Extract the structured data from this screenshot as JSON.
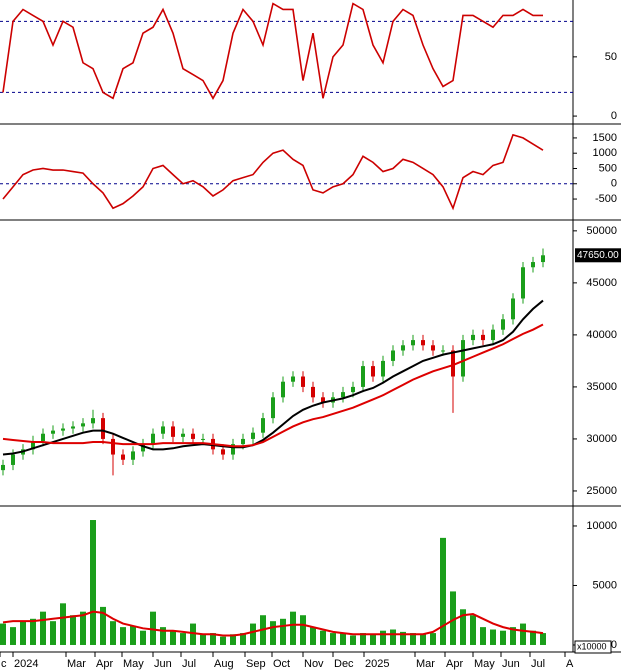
{
  "chart_data": [
    {
      "type": "line",
      "xlim": [
        -0.3,
        57
      ],
      "ylim": [
        -5,
        98
      ],
      "yticks": [
        0,
        50
      ],
      "levels": [
        20,
        80
      ],
      "series": [
        {
          "color": "#cc0000",
          "values": [
            20,
            80,
            90,
            85,
            80,
            60,
            80,
            75,
            45,
            40,
            20,
            15,
            40,
            45,
            70,
            75,
            90,
            70,
            40,
            35,
            30,
            15,
            30,
            70,
            90,
            80,
            60,
            95,
            90,
            90,
            30,
            70,
            15,
            50,
            60,
            95,
            90,
            60,
            45,
            80,
            90,
            85,
            60,
            40,
            25,
            30,
            85,
            85,
            80,
            75,
            85,
            85,
            90,
            85,
            85
          ]
        }
      ]
    },
    {
      "type": "line",
      "xlim": [
        -0.3,
        57
      ],
      "ylim": [
        -1120,
        1890
      ],
      "yticks": [
        -500,
        0,
        500,
        1000,
        1500
      ],
      "levels": [
        0
      ],
      "series": [
        {
          "color": "#cc0000",
          "values": [
            -500,
            -100,
            300,
            450,
            500,
            450,
            450,
            400,
            350,
            0,
            -300,
            -800,
            -650,
            -400,
            -100,
            500,
            600,
            300,
            0,
            100,
            -100,
            -400,
            -200,
            100,
            200,
            300,
            700,
            1000,
            1100,
            800,
            600,
            -200,
            -300,
            -100,
            0,
            300,
            900,
            700,
            400,
            500,
            800,
            700,
            500,
            300,
            -100,
            -800,
            200,
            400,
            300,
            600,
            700,
            1600,
            1500,
            1300,
            1100
          ]
        }
      ]
    },
    {
      "type": "candlestick",
      "xlim": [
        -0.3,
        57
      ],
      "ylim": [
        23650,
        50850
      ],
      "yticks": [
        25000,
        30000,
        35000,
        40000,
        45000,
        50000
      ],
      "last": {
        "value": 47650,
        "label": "47650.00"
      },
      "up_color": "#1a9e1a",
      "down_color": "#d40000",
      "open": [
        27000,
        27500,
        28500,
        29000,
        29800,
        30500,
        30800,
        31000,
        31200,
        31500,
        32000,
        30000,
        28500,
        28000,
        28800,
        29500,
        30500,
        31200,
        30200,
        30500,
        30000,
        30000,
        29000,
        28500,
        29500,
        30000,
        30600,
        32000,
        34000,
        35500,
        36000,
        35000,
        34000,
        33500,
        34000,
        34500,
        35000,
        37000,
        36000,
        37500,
        38500,
        39000,
        39500,
        39000,
        38500,
        38500,
        36000,
        39500,
        40000,
        39500,
        40500,
        41500,
        43500,
        46500,
        47000
      ],
      "high": [
        28000,
        29000,
        29500,
        30300,
        31000,
        31300,
        31500,
        31700,
        32000,
        32800,
        32500,
        30500,
        29000,
        29300,
        30000,
        31000,
        31700,
        31700,
        31000,
        31000,
        30500,
        30500,
        29500,
        30000,
        30500,
        31100,
        32500,
        34500,
        36000,
        36500,
        36500,
        35500,
        34500,
        34500,
        35000,
        35500,
        37500,
        37500,
        38000,
        39000,
        39500,
        40000,
        40000,
        39500,
        39000,
        39000,
        40000,
        40500,
        40500,
        41000,
        42000,
        44000,
        47000,
        47500,
        48300
      ],
      "low": [
        26500,
        27000,
        28000,
        28500,
        29300,
        30000,
        30300,
        30500,
        30700,
        31000,
        29500,
        26500,
        27500,
        27500,
        28300,
        29000,
        30000,
        29700,
        29700,
        29500,
        29500,
        28500,
        28000,
        28000,
        29000,
        29500,
        30100,
        31500,
        33500,
        35000,
        34500,
        33500,
        33000,
        33000,
        33500,
        34000,
        34500,
        35500,
        35500,
        37000,
        38000,
        38500,
        38500,
        38000,
        38000,
        32500,
        35500,
        39000,
        39000,
        39000,
        40000,
        41000,
        43000,
        46000,
        46500
      ],
      "close": [
        27500,
        28500,
        29000,
        29800,
        30500,
        30800,
        31000,
        31200,
        31500,
        32000,
        30000,
        28500,
        28000,
        28800,
        29500,
        30500,
        31200,
        30200,
        30500,
        30000,
        30000,
        29000,
        28500,
        29500,
        30000,
        30600,
        32000,
        34000,
        35500,
        36000,
        35000,
        34000,
        33500,
        34000,
        34500,
        35000,
        37000,
        36000,
        37500,
        38500,
        39000,
        39500,
        39000,
        38500,
        38500,
        36000,
        39500,
        40000,
        39500,
        40500,
        41500,
        43500,
        46500,
        47000,
        47650
      ],
      "series": [
        {
          "color": "#000000",
          "values": [
            28500,
            28600,
            28800,
            29100,
            29400,
            29700,
            30000,
            30300,
            30600,
            30800,
            30800,
            30500,
            30100,
            29700,
            29300,
            29000,
            29000,
            29100,
            29300,
            29400,
            29500,
            29400,
            29300,
            29200,
            29200,
            29400,
            29900,
            30600,
            31400,
            32200,
            32800,
            33200,
            33500,
            33700,
            33900,
            34200,
            34600,
            34900,
            35400,
            36000,
            36500,
            37000,
            37500,
            37800,
            38100,
            38300,
            38500,
            38700,
            38900,
            39100,
            39500,
            40300,
            41500,
            42500,
            43300
          ]
        },
        {
          "color": "#dd0000",
          "values": [
            30000,
            29900,
            29800,
            29700,
            29700,
            29600,
            29600,
            29600,
            29600,
            29700,
            29700,
            29600,
            29500,
            29500,
            29500,
            29500,
            29600,
            29600,
            29600,
            29600,
            29600,
            29500,
            29400,
            29300,
            29300,
            29400,
            29700,
            30200,
            30700,
            31200,
            31600,
            31900,
            32100,
            32400,
            32700,
            33000,
            33400,
            33800,
            34200,
            34700,
            35200,
            35700,
            36100,
            36500,
            36800,
            37100,
            37500,
            37900,
            38300,
            38700,
            39100,
            39600,
            40100,
            40500,
            41000
          ]
        }
      ]
    },
    {
      "type": "bar",
      "xlim": [
        -0.3,
        57
      ],
      "ylim": [
        -590,
        11510
      ],
      "yticks": [
        0,
        5000,
        10000
      ],
      "unit": "x10000",
      "color": "#1a9e1a",
      "values": [
        1800,
        1500,
        2000,
        2200,
        2800,
        2000,
        3500,
        2500,
        2800,
        10500,
        3200,
        2000,
        1500,
        1600,
        1200,
        2800,
        1500,
        1200,
        1000,
        1800,
        900,
        1000,
        700,
        900,
        1000,
        1800,
        2500,
        2000,
        2200,
        2800,
        2500,
        1500,
        1200,
        1000,
        1000,
        800,
        1000,
        900,
        1200,
        1300,
        1100,
        1000,
        900,
        1000,
        9000,
        4500,
        3000,
        2500,
        1500,
        1300,
        1200,
        1500,
        1800,
        1200,
        1000
      ],
      "series": [
        {
          "color": "#dd0000",
          "values": [
            1900,
            2000,
            2000,
            2000,
            2100,
            2200,
            2300,
            2400,
            2500,
            2800,
            2700,
            2200,
            1800,
            1600,
            1400,
            1300,
            1200,
            1200,
            1100,
            1000,
            900,
            900,
            800,
            800,
            900,
            1100,
            1300,
            1500,
            1600,
            1700,
            1700,
            1500,
            1300,
            1100,
            1000,
            900,
            900,
            900,
            900,
            900,
            900,
            900,
            900,
            1100,
            1600,
            2100,
            2500,
            2600,
            2200,
            1800,
            1500,
            1300,
            1200,
            1100,
            1000
          ]
        }
      ],
      "xticks": [
        {
          "value": -0.3,
          "label": "c"
        },
        {
          "value": 1.0,
          "label": "2024"
        },
        {
          "value": 6.3,
          "label": "Mar"
        },
        {
          "value": 9.2,
          "label": "Apr"
        },
        {
          "value": 11.9,
          "label": "May"
        },
        {
          "value": 15.0,
          "label": "Jun"
        },
        {
          "value": 17.8,
          "label": "Jul"
        },
        {
          "value": 21.0,
          "label": "Aug"
        },
        {
          "value": 24.2,
          "label": "Sep"
        },
        {
          "value": 26.9,
          "label": "Oct"
        },
        {
          "value": 30.0,
          "label": "Nov"
        },
        {
          "value": 33.0,
          "label": "Dec"
        },
        {
          "value": 36.1,
          "label": "2025"
        },
        {
          "value": 41.2,
          "label": "Mar"
        },
        {
          "value": 44.2,
          "label": "Apr"
        },
        {
          "value": 47.0,
          "label": "May"
        },
        {
          "value": 49.8,
          "label": "Jun"
        },
        {
          "value": 52.7,
          "label": "Jul"
        },
        {
          "value": 56.2,
          "label": "A"
        }
      ]
    }
  ]
}
